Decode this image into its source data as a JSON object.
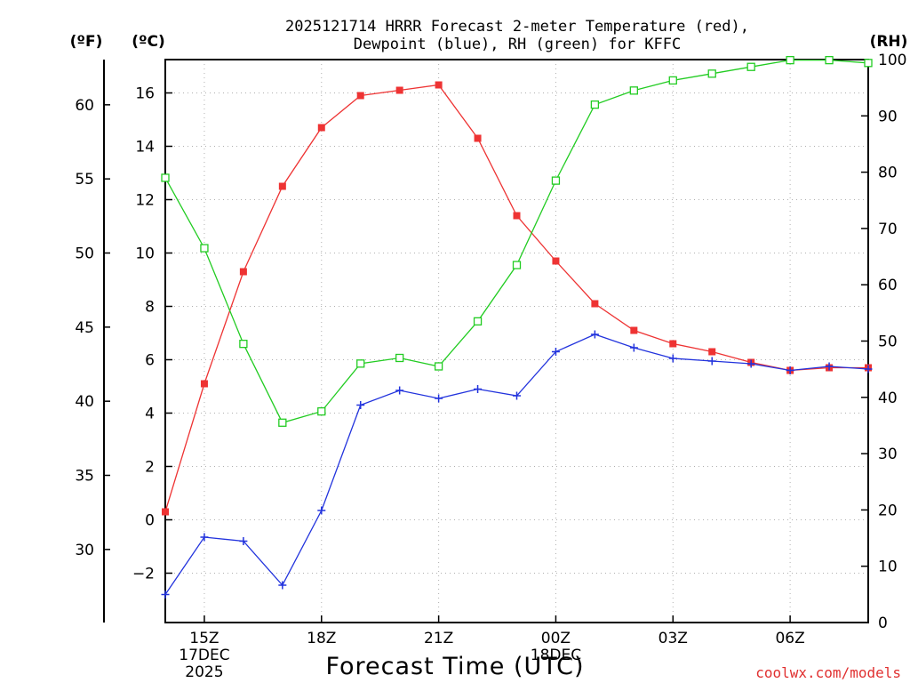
{
  "chart_data": {
    "type": "line",
    "title_line1": "2025121714 HRRR Forecast 2-meter Temperature (red),",
    "title_line2": "Dewpoint (blue), RH (green) for KFFC",
    "xlabel": "Forecast Time (UTC)",
    "credit": "coolwx.com/models",
    "units": {
      "fahrenheit": "(ºF)",
      "celsius": "(ºC)",
      "rh": "(RH)"
    },
    "x_hours": [
      14,
      15,
      16,
      17,
      18,
      19,
      20,
      21,
      22,
      23,
      24,
      25,
      26,
      27,
      28,
      29,
      30,
      31,
      32
    ],
    "x_ticks": [
      {
        "hour": 15,
        "label": "15Z",
        "sub1": "17DEC",
        "sub2": "2025"
      },
      {
        "hour": 18,
        "label": "18Z",
        "sub1": "",
        "sub2": ""
      },
      {
        "hour": 21,
        "label": "21Z",
        "sub1": "",
        "sub2": ""
      },
      {
        "hour": 24,
        "label": "00Z",
        "sub1": "18DEC",
        "sub2": ""
      },
      {
        "hour": 27,
        "label": "03Z",
        "sub1": "",
        "sub2": ""
      },
      {
        "hour": 30,
        "label": "06Z",
        "sub1": "",
        "sub2": ""
      }
    ],
    "xlim": [
      14,
      32
    ],
    "ylim_celsius": [
      -3.85,
      17.25
    ],
    "ylim_rh": [
      0,
      100
    ],
    "celsius_ticks": [
      -2,
      0,
      2,
      4,
      6,
      8,
      10,
      12,
      14,
      16
    ],
    "fahrenheit_ticks": [
      30,
      35,
      40,
      45,
      50,
      55,
      60
    ],
    "rh_ticks": [
      0,
      10,
      20,
      30,
      40,
      50,
      60,
      70,
      80,
      90,
      100
    ],
    "series": [
      {
        "name": "2-meter Temperature",
        "color": "#ee3333",
        "marker": "filled-square",
        "units": "celsius",
        "values": [
          0.3,
          5.1,
          9.3,
          12.5,
          14.7,
          15.9,
          16.1,
          16.3,
          14.3,
          11.4,
          9.7,
          8.1,
          7.1,
          6.6,
          6.3,
          5.9,
          5.6,
          5.7,
          5.7
        ]
      },
      {
        "name": "Dewpoint",
        "color": "#2233dd",
        "marker": "plus",
        "units": "celsius",
        "values": [
          -2.8,
          -0.65,
          -0.8,
          -2.45,
          0.35,
          4.3,
          4.85,
          4.55,
          4.9,
          4.65,
          6.3,
          6.95,
          6.45,
          6.05,
          5.95,
          5.85,
          5.6,
          5.75,
          5.65
        ]
      },
      {
        "name": "RH",
        "color": "#22cc22",
        "marker": "open-square",
        "units": "rh",
        "values": [
          79,
          66.5,
          49.5,
          35.5,
          37.5,
          46,
          47,
          45.5,
          53.5,
          63.5,
          78.5,
          92,
          94.5,
          96.3,
          97.5,
          98.7,
          99.9,
          99.9,
          99.4
        ]
      }
    ],
    "grid": true
  }
}
